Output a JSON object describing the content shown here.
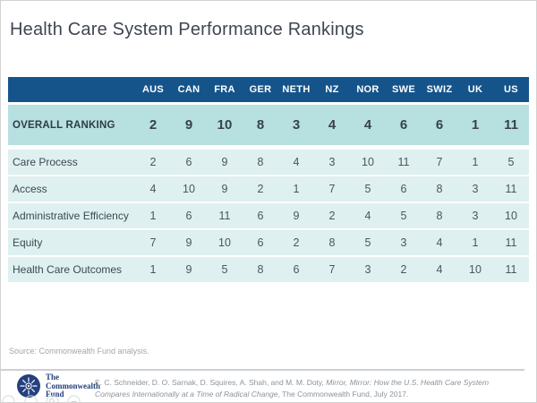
{
  "page": {
    "title": "Health Care System Performance Rankings"
  },
  "chart_data": {
    "type": "table",
    "title": "Health Care System Performance Rankings",
    "columns": [
      "AUS",
      "CAN",
      "FRA",
      "GER",
      "NETH",
      "NZ",
      "NOR",
      "SWE",
      "SWIZ",
      "UK",
      "US"
    ],
    "rows": [
      {
        "label": "OVERALL RANKING",
        "emphasis": true,
        "values": [
          2,
          9,
          10,
          8,
          3,
          4,
          4,
          6,
          6,
          1,
          11
        ]
      },
      {
        "label": "Care Process",
        "emphasis": false,
        "values": [
          2,
          6,
          9,
          8,
          4,
          3,
          10,
          11,
          7,
          1,
          5
        ]
      },
      {
        "label": "Access",
        "emphasis": false,
        "values": [
          4,
          10,
          9,
          2,
          1,
          7,
          5,
          6,
          8,
          3,
          11
        ]
      },
      {
        "label": "Administrative Efficiency",
        "emphasis": false,
        "values": [
          1,
          6,
          11,
          6,
          9,
          2,
          4,
          5,
          8,
          3,
          10
        ]
      },
      {
        "label": "Equity",
        "emphasis": false,
        "values": [
          7,
          9,
          10,
          6,
          2,
          8,
          5,
          3,
          4,
          1,
          11
        ]
      },
      {
        "label": "Health Care Outcomes",
        "emphasis": false,
        "values": [
          1,
          9,
          5,
          8,
          6,
          7,
          3,
          2,
          4,
          10,
          11
        ]
      }
    ],
    "source": "Source: Commonwealth Fund analysis.",
    "layout": {
      "header_style": "dark-blue-band",
      "emphasis_row_style": "teal-band",
      "grid": "off"
    }
  },
  "source_note": "Source: Commonwealth Fund analysis.",
  "footer": {
    "logo_lines": [
      "The",
      "Commonwealth",
      "Fund"
    ],
    "citation": {
      "pre": "E. C. Schneider, D. O. Sarnak, D. Squires, A. Shah, and M. M. Doty, ",
      "italic": "Mirror, Mirror: How the U.S. Health Care System Compares Internationally at a Time of Radical Change",
      "post": ", The Commonwealth Fund, July 2017."
    }
  },
  "colors": {
    "header_bg": "#15548A",
    "overall_row_bg": "#B7E0E0",
    "data_row_bg": "#DEF0F0",
    "logo_navy": "#24407E",
    "title_color": "#3F4651",
    "divider": "#CBD0D4"
  }
}
